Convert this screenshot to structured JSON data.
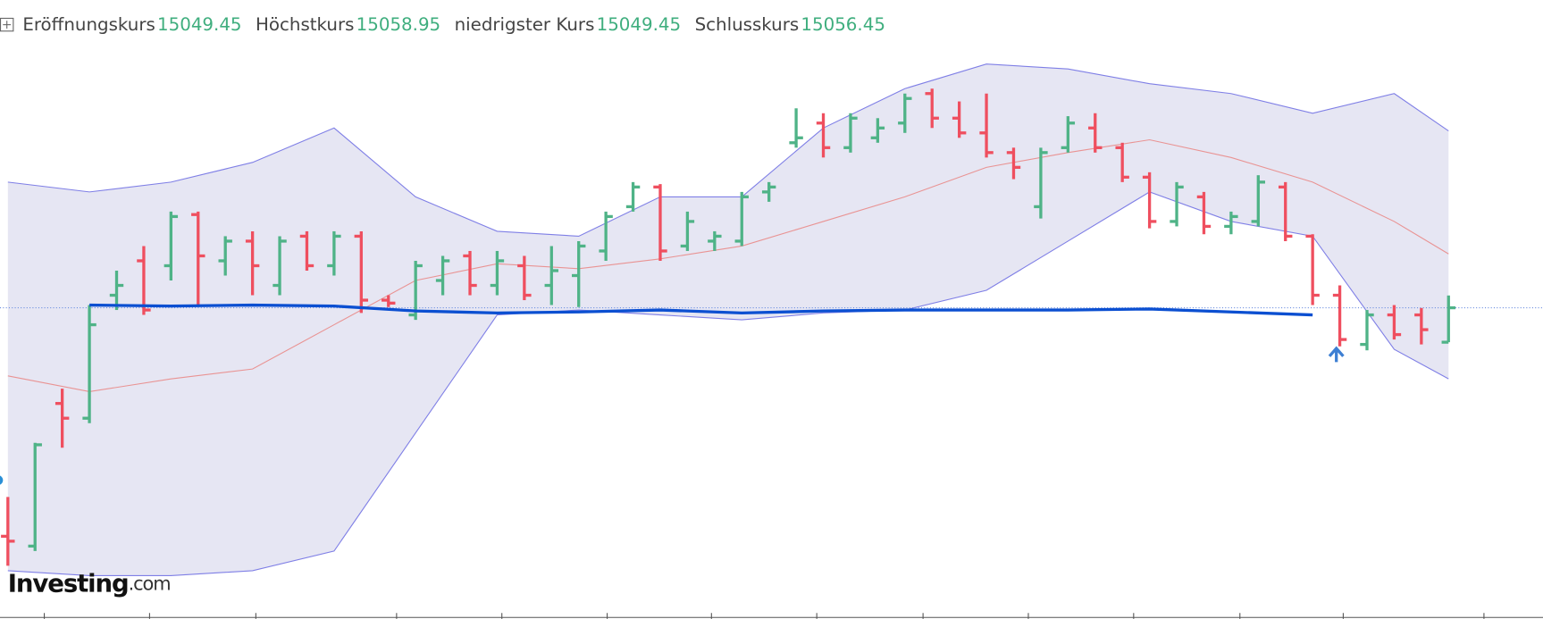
{
  "chart_data": {
    "type": "ohlc",
    "header": [
      {
        "label": "Eröffnungskurs",
        "value": 15049.45
      },
      {
        "label": "Höchstkurs",
        "value": 15058.95
      },
      {
        "label": "niedrigster Kurs",
        "value": 15049.45
      },
      {
        "label": "Schlusskurs",
        "value": 15056.45
      }
    ],
    "open": [
      15010,
      15008,
      15037,
      15034,
      15059,
      15066,
      15065,
      15075.4,
      15066,
      15070,
      15061,
      15071,
      15065,
      15071,
      15058,
      15055,
      15062,
      15067,
      15061,
      15065,
      15061,
      15063,
      15068,
      15077,
      15081,
      15069,
      15070,
      15070,
      15080,
      15090,
      15094,
      15089,
      15091,
      15094,
      15100,
      15095,
      15092,
      15088,
      15077,
      15089,
      15093,
      15089,
      15083,
      15074,
      15079,
      15073,
      15074,
      15081,
      15071,
      15059,
      15049,
      15055,
      15055,
      15049.45
    ],
    "high": [
      15018,
      15029,
      15040,
      15057,
      15064,
      15069,
      15076,
      15076,
      15071,
      15072,
      15071,
      15072,
      15072,
      15072,
      15059,
      15066,
      15067,
      15068,
      15068,
      15067,
      15069,
      15070,
      15076,
      15082,
      15081.6,
      15076,
      15072,
      15080,
      15082,
      15097,
      15096,
      15096,
      15095,
      15100,
      15101,
      15098.4,
      15100,
      15089,
      15089,
      15095.4,
      15096,
      15090,
      15084,
      15082,
      15080,
      15076,
      15083.4,
      15082,
      15071.4,
      15061,
      15056,
      15057,
      15056.4,
      15058.95
    ],
    "low": [
      15004,
      15007,
      15028,
      15033,
      15056,
      15055,
      15062,
      15057,
      15063,
      15059,
      15059,
      15064,
      15063,
      15055.4,
      15056.6,
      15054,
      15059,
      15059,
      15059,
      15058,
      15057,
      15056.6,
      15066,
      15076,
      15066,
      15068,
      15068,
      15069,
      15078,
      15089,
      15087,
      15088,
      15090,
      15092,
      15093,
      15091,
      15087,
      15082.6,
      15074.6,
      15088,
      15088,
      15082,
      15072.6,
      15073,
      15071.4,
      15071.4,
      15073,
      15070,
      15057,
      15048.6,
      15047.8,
      15050,
      15049,
      15049.45
    ],
    "close": [
      15009,
      15028.6,
      15034,
      15053,
      15061,
      15056,
      15075,
      15067,
      15070,
      15065,
      15070,
      15065,
      15071,
      15058,
      15057.4,
      15065,
      15066,
      15061,
      15066,
      15059,
      15064,
      15069,
      15075,
      15081,
      15068,
      15074,
      15071,
      15079,
      15081,
      15091,
      15089,
      15095,
      15093,
      15099,
      15095,
      15092,
      15088,
      15085,
      15088,
      15094,
      15089,
      15083,
      15074,
      15081,
      15073,
      15075,
      15082,
      15071,
      15059,
      15050,
      15055,
      15051,
      15052,
      15056.45
    ],
    "up_color": "#4fb387",
    "down_color": "#ef4f5f",
    "ylim": [
      14993,
      15113
    ],
    "bands": {
      "x": [
        0,
        3,
        6,
        9,
        12,
        15,
        18,
        21,
        24,
        27,
        30,
        33,
        36,
        39,
        42,
        45,
        48,
        51,
        53
      ],
      "upper": [
        15082,
        15080,
        15082,
        15086,
        15093,
        15079,
        15072,
        15071,
        15079,
        15079,
        15093,
        15101,
        15106,
        15105,
        15102,
        15100,
        15096,
        15100,
        15092.4
      ],
      "middle": [
        15042.6,
        15039.4,
        15042,
        15044,
        15053,
        15062,
        15065.4,
        15064.4,
        15066.4,
        15069,
        15074,
        15079,
        15085,
        15088,
        15090.6,
        15087,
        15082,
        15074,
        15067.4
      ],
      "lower": [
        15003,
        15002,
        15002,
        15003,
        15007,
        15031,
        15055,
        15056,
        15055,
        15054,
        15055.4,
        15056,
        15060,
        15070,
        15080,
        15074,
        15071,
        15048,
        15042
      ],
      "line_color": "#7f7fe6",
      "middle_color": "#e99393",
      "fill_color": "#e6e6f3"
    },
    "average": {
      "values": [
        null,
        15057,
        15056.8,
        15057,
        15056.8,
        15055.8,
        15055.4,
        15055.6,
        15056,
        15055.4,
        15055.8,
        15056,
        15056,
        15056,
        15056.2,
        15055.6,
        15055,
        null,
        null
      ],
      "color": "#0b4fd1"
    },
    "watermark": {
      "brand": "Investing",
      "suffix": ".com"
    }
  }
}
